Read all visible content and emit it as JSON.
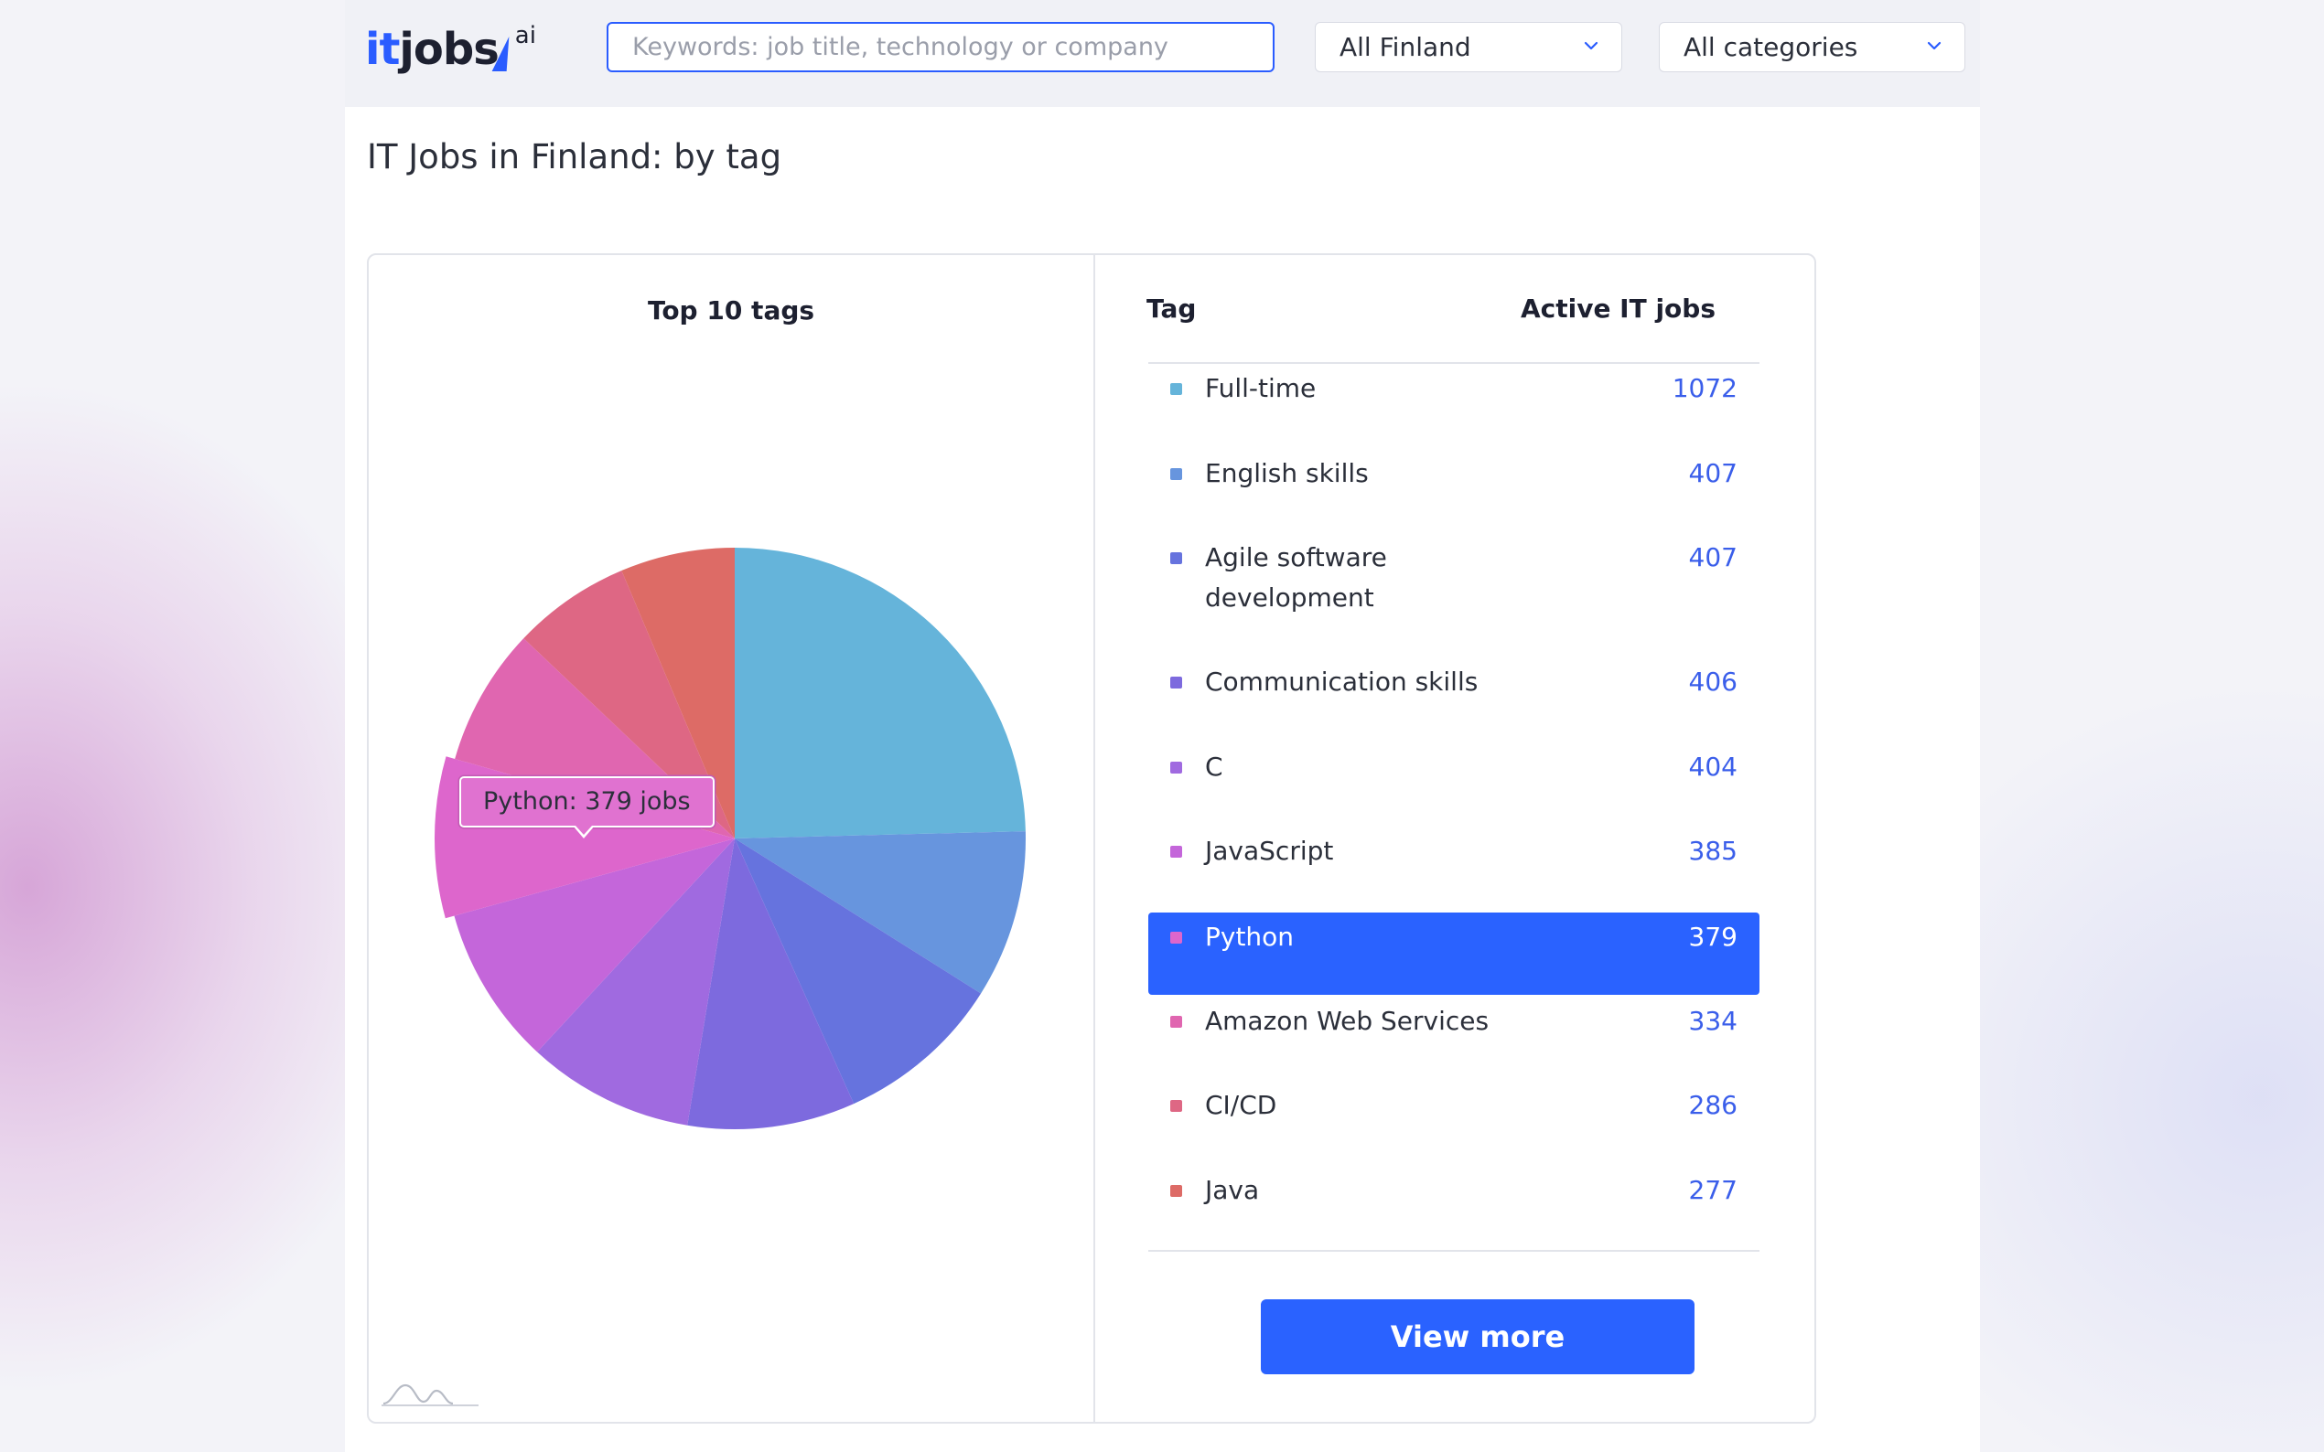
{
  "header": {
    "logo_text_it": "it",
    "logo_text_jobs": "jobs",
    "logo_sup": "ai",
    "search_placeholder": "Keywords: job title, technology or company",
    "search_value": "",
    "location_select": "All Finland",
    "category_select": "All categories",
    "icons": [
      "chevron-down-icon"
    ]
  },
  "page": {
    "title": "IT Jobs in Finland: by tag"
  },
  "chart_data": {
    "type": "pie",
    "title": "Top 10 tags",
    "categories": [
      "Full-time",
      "English skills",
      "Agile software development",
      "Communication skills",
      "C",
      "JavaScript",
      "Python",
      "Amazon Web Services",
      "CI/CD",
      "Java"
    ],
    "values": [
      1072,
      407,
      407,
      406,
      404,
      385,
      379,
      334,
      286,
      277
    ],
    "colors": [
      "#65b4da",
      "#6795de",
      "#6673de",
      "#7d6ade",
      "#a06ae0",
      "#c466da",
      "#dd66cc",
      "#e066b0",
      "#de6784",
      "#dd6b66"
    ],
    "highlighted": "Python",
    "tooltip": "Python: 379 jobs"
  },
  "table": {
    "col_tag": "Tag",
    "col_jobs": "Active IT jobs",
    "selected": "Python",
    "rows": [
      {
        "tag": "Full-time",
        "jobs": "1072"
      },
      {
        "tag": "English skills",
        "jobs": "407"
      },
      {
        "tag": "Agile software development",
        "jobs": "407"
      },
      {
        "tag": "Communication skills",
        "jobs": "406"
      },
      {
        "tag": "C",
        "jobs": "404"
      },
      {
        "tag": "JavaScript",
        "jobs": "385"
      },
      {
        "tag": "Python",
        "jobs": "379"
      },
      {
        "tag": "Amazon Web Services",
        "jobs": "334"
      },
      {
        "tag": "CI/CD",
        "jobs": "286"
      },
      {
        "tag": "Java",
        "jobs": "277"
      }
    ]
  },
  "buttons": {
    "view_more": "View more"
  }
}
